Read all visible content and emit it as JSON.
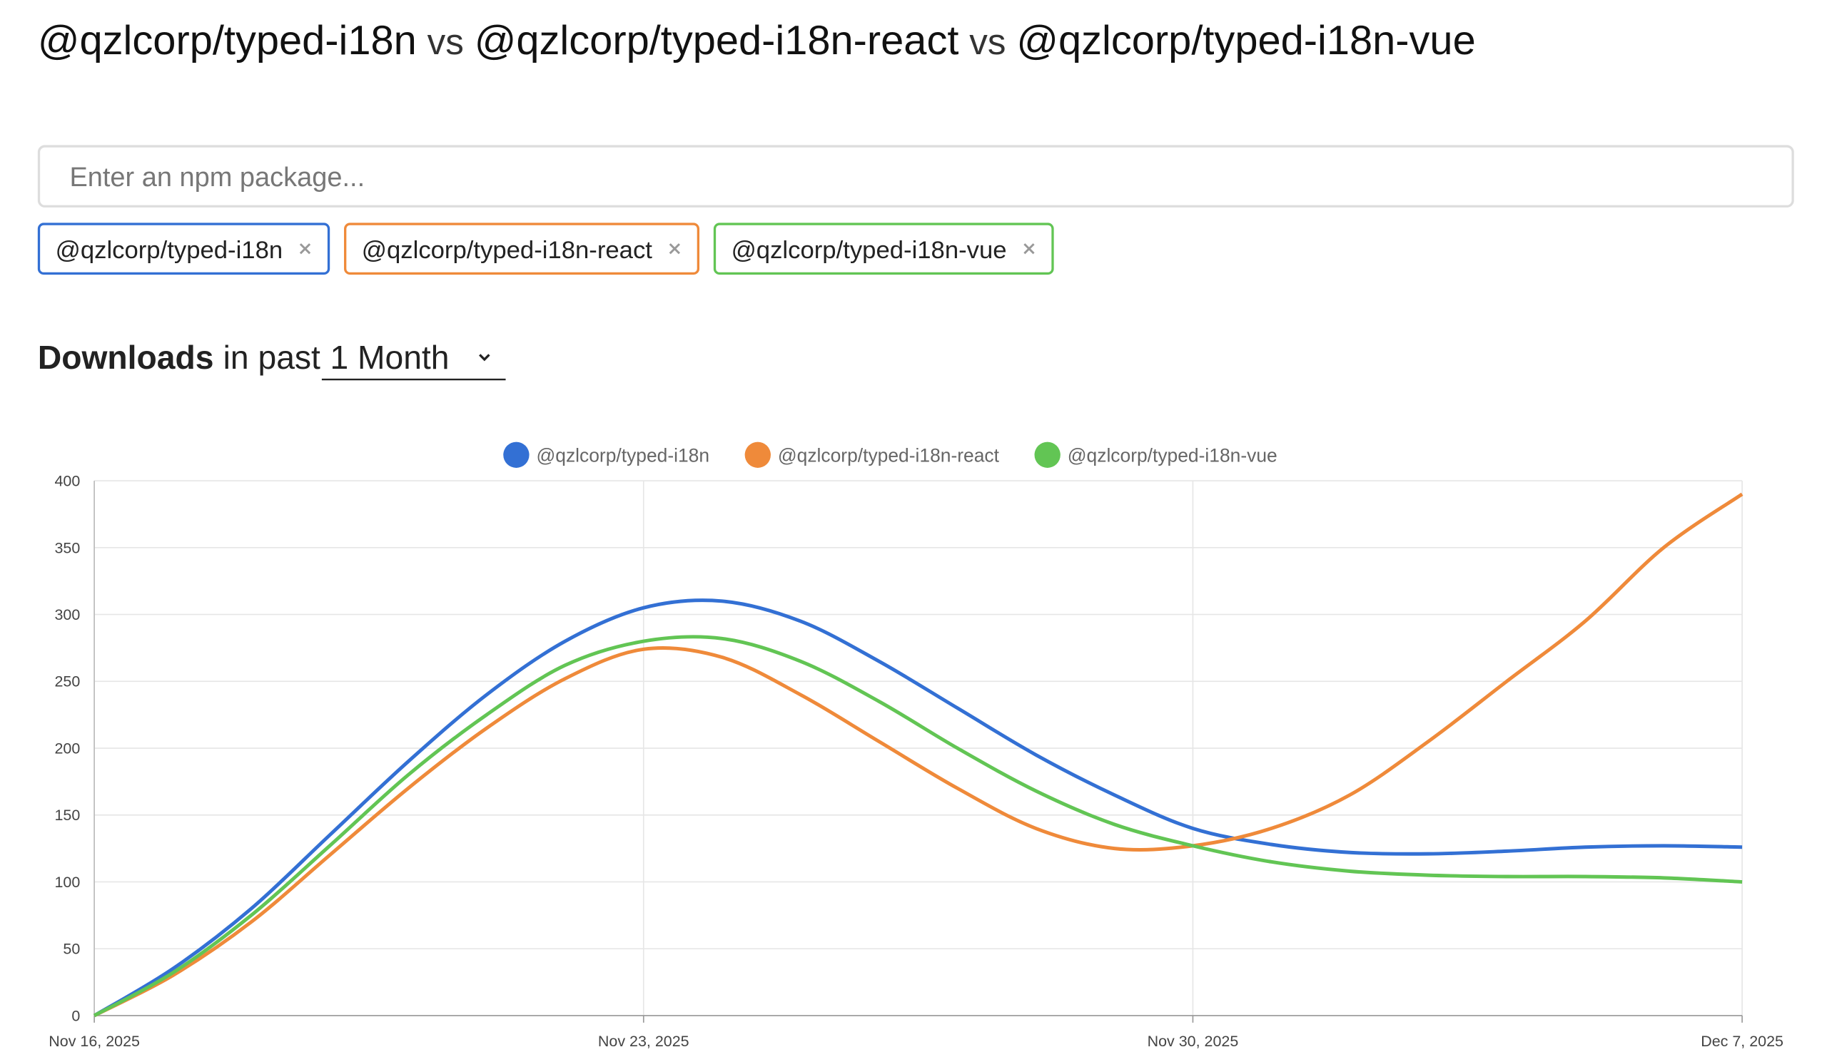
{
  "header": {
    "title_parts": [
      "@qzlcorp/typed-i18n",
      "vs",
      "@qzlcorp/typed-i18n-react",
      "vs",
      "@qzlcorp/typed-i18n-vue"
    ]
  },
  "search": {
    "placeholder": "Enter an npm package..."
  },
  "tags": [
    "@qzlcorp/typed-i18n",
    "@qzlcorp/typed-i18n-react",
    "@qzlcorp/typed-i18n-vue"
  ],
  "period": {
    "label": "Downloads",
    "connector": "in past",
    "selected": "1 Month"
  },
  "chart_data": {
    "type": "line",
    "x": [
      "Nov 16, 2025",
      "Nov 17, 2025",
      "Nov 18, 2025",
      "Nov 19, 2025",
      "Nov 20, 2025",
      "Nov 21, 2025",
      "Nov 22, 2025",
      "Nov 23, 2025",
      "Nov 24, 2025",
      "Nov 25, 2025",
      "Nov 26, 2025",
      "Nov 27, 2025",
      "Nov 28, 2025",
      "Nov 29, 2025",
      "Nov 30, 2025",
      "Dec 1, 2025",
      "Dec 2, 2025",
      "Dec 3, 2025",
      "Dec 4, 2025",
      "Dec 5, 2025",
      "Dec 6, 2025",
      "Dec 7, 2025"
    ],
    "series": [
      {
        "name": "@qzlcorp/typed-i18n",
        "color": "#3370d4",
        "values": [
          0,
          35,
          80,
          135,
          190,
          240,
          280,
          305,
          310,
          295,
          265,
          230,
          195,
          165,
          140,
          128,
          122,
          121,
          123,
          126,
          127,
          126
        ]
      },
      {
        "name": "@qzlcorp/typed-i18n-react",
        "color": "#ef8a3a",
        "values": [
          0,
          30,
          70,
          120,
          170,
          215,
          252,
          274,
          268,
          240,
          205,
          170,
          140,
          125,
          127,
          140,
          165,
          205,
          250,
          295,
          350,
          390
        ]
      },
      {
        "name": "@qzlcorp/typed-i18n-vue",
        "color": "#62c554",
        "values": [
          0,
          32,
          75,
          127,
          180,
          225,
          262,
          280,
          282,
          265,
          235,
          200,
          168,
          143,
          127,
          115,
          108,
          105,
          104,
          104,
          103,
          100
        ]
      }
    ],
    "xlim": [
      "Nov 16, 2025",
      "Dec 7, 2025"
    ],
    "xticks": [
      "Nov 16, 2025",
      "Nov 23, 2025",
      "Nov 30, 2025",
      "Dec 7, 2025"
    ],
    "ylim": [
      0,
      400
    ],
    "yticks": [
      0,
      50,
      100,
      150,
      200,
      250,
      300,
      350,
      400
    ],
    "grid": true
  }
}
